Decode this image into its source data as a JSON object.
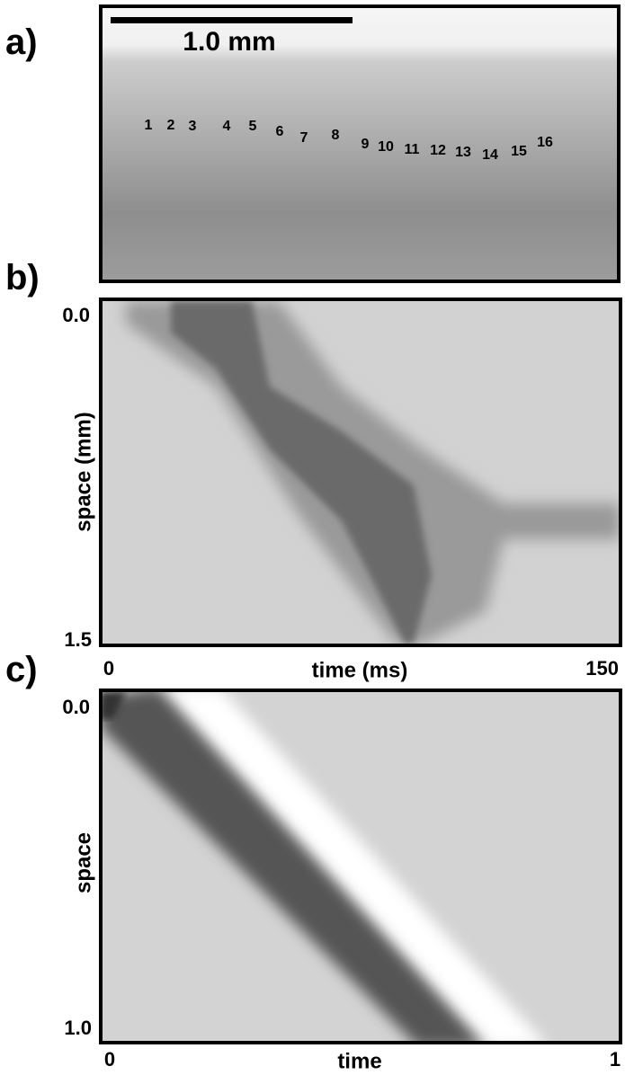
{
  "panels": [
    {
      "label": "a)",
      "scale_bar": "1.0 mm",
      "markers": [
        "1",
        "2",
        "3",
        "4",
        "5",
        "6",
        "7",
        "8",
        "9",
        "10",
        "11",
        "12",
        "13",
        "14",
        "15",
        "16"
      ]
    },
    {
      "label": "b)",
      "y_axis": {
        "title": "space (mm)",
        "ticks": [
          "0.0",
          "1.5"
        ]
      },
      "x_axis": {
        "title": "time (ms)",
        "ticks": [
          "0",
          "150"
        ]
      }
    },
    {
      "label": "c)",
      "y_axis": {
        "title": "space",
        "ticks": [
          "0.0",
          "1.0"
        ]
      },
      "x_axis": {
        "title": "time",
        "ticks": [
          "0",
          "1"
        ]
      }
    }
  ]
}
